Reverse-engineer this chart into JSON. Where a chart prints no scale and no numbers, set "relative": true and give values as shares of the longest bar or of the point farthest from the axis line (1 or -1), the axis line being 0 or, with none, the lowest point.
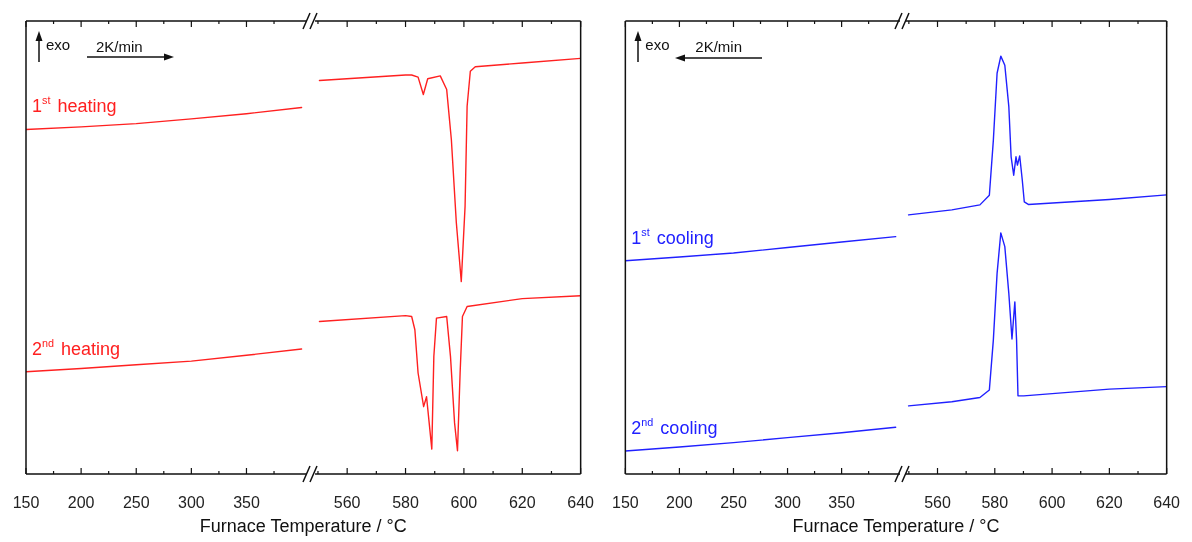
{
  "chart_data": [
    {
      "type": "line",
      "relative": true,
      "xlabel": "Furnace Temperature / °C",
      "annotations": [
        "exo",
        "2K/min"
      ],
      "xlim": [
        150,
        404
      ],
      "xticks": [
        150,
        {
          "value": 175,
          "label": null
        },
        200,
        {
          "value": 225,
          "label": null
        },
        250,
        {
          "value": 275,
          "label": null
        },
        300,
        {
          "value": 325,
          "label": null
        },
        350,
        {
          "value": 375,
          "label": null
        }
      ],
      "series": [
        {
          "name": "1$^{st}$ heating",
          "color": "#ff2020",
          "x": [
            150,
            200,
            250,
            300,
            350,
            400
          ],
          "values": [
            0.94,
            0.947,
            0.956,
            0.969,
            0.983,
            1.0
          ]
        },
        {
          "name": "2$^{nd}$ heating",
          "color": "#ff2020",
          "x": [
            150,
            200,
            250,
            300,
            350,
            400
          ],
          "values": [
            0.279,
            0.288,
            0.298,
            0.308,
            0.324,
            0.341
          ]
        }
      ]
    },
    {
      "type": "line",
      "relative": true,
      "xlim": [
        549,
        640
      ],
      "xticks": [
        {
          "value": 550,
          "label": null
        },
        560,
        {
          "value": 570,
          "label": null
        },
        580,
        {
          "value": 590,
          "label": null
        },
        600,
        {
          "value": 610,
          "label": null
        },
        620,
        {
          "value": 630,
          "label": null
        },
        640
      ],
      "series": [
        {
          "color": "#ff2020",
          "x": [
            550.5,
            580,
            582.1,
            584.3,
            586.1,
            587.6,
            591.9,
            594.1,
            595.7,
            597.4,
            599.1,
            600.4,
            601.1,
            602.2,
            603.9,
            620,
            640
          ],
          "values": [
            0.947,
            0.96,
            0.96,
            0.955,
            0.913,
            0.951,
            0.958,
            0.925,
            0.805,
            0.605,
            0.463,
            0.644,
            0.885,
            0.969,
            0.98,
            0.989,
            1.0
          ]
        },
        {
          "color": "#ff2020",
          "x": [
            550.5,
            580,
            582.1,
            583.2,
            584.3,
            586.2,
            587.2,
            588.1,
            589.0,
            589.7,
            590.6,
            594.1,
            595.4,
            596.8,
            597.8,
            598.7,
            599.5,
            601.1,
            620,
            640
          ],
          "values": [
            0.367,
            0.381,
            0.379,
            0.347,
            0.243,
            0.162,
            0.186,
            0.123,
            0.06,
            0.283,
            0.375,
            0.379,
            0.283,
            0.123,
            0.056,
            0.243,
            0.379,
            0.403,
            0.422,
            0.429
          ]
        }
      ]
    },
    {
      "type": "line",
      "relative": true,
      "xlabel": "Furnace Temperature / °C",
      "annotations": [
        "exo",
        "2K/min"
      ],
      "xlim": [
        150,
        404
      ],
      "xticks": [
        150,
        {
          "value": 175,
          "label": null
        },
        200,
        {
          "value": 225,
          "label": null
        },
        250,
        {
          "value": 275,
          "label": null
        },
        300,
        {
          "value": 325,
          "label": null
        },
        350,
        {
          "value": 375,
          "label": null
        }
      ],
      "series": [
        {
          "name": "1$^{st}$ cooling",
          "color": "#2020ff",
          "x": [
            150,
            200,
            250,
            300,
            350,
            400
          ],
          "values": [
            0.898,
            0.914,
            0.931,
            0.954,
            0.977,
            1.0
          ]
        },
        {
          "name": "2$^{nd}$ cooling",
          "color": "#2020ff",
          "x": [
            150,
            200,
            250,
            300,
            350,
            400
          ],
          "values": [
            0.097,
            0.114,
            0.132,
            0.153,
            0.174,
            0.197
          ]
        }
      ]
    },
    {
      "type": "line",
      "relative": true,
      "xlim": [
        549,
        640
      ],
      "xticks": [
        {
          "value": 550,
          "label": null
        },
        560,
        {
          "value": 570,
          "label": null
        },
        580,
        {
          "value": 590,
          "label": null
        },
        600,
        {
          "value": 610,
          "label": null
        },
        620,
        {
          "value": 630,
          "label": null
        },
        640
      ],
      "series": [
        {
          "color": "#2020ff",
          "x": [
            549.9,
            565.0,
            574.8,
            578.1,
            579.5,
            580.8,
            582.1,
            583.5,
            584.9,
            585.7,
            586.6,
            587.4,
            587.9,
            588.7,
            589.6,
            590.3,
            591.7,
            620,
            640
          ],
          "values": [
            0.62,
            0.632,
            0.644,
            0.667,
            0.799,
            0.959,
            1.0,
            0.978,
            0.879,
            0.759,
            0.715,
            0.759,
            0.739,
            0.761,
            0.703,
            0.651,
            0.645,
            0.657,
            0.668
          ]
        },
        {
          "color": "#2020ff",
          "x": [
            549.9,
            565.0,
            574.8,
            578.1,
            579.5,
            580.8,
            582.1,
            583.5,
            584.9,
            586.0,
            587.0,
            587.6,
            588.1,
            590.1,
            620,
            640
          ],
          "values": [
            0.163,
            0.173,
            0.183,
            0.201,
            0.321,
            0.48,
            0.577,
            0.544,
            0.432,
            0.323,
            0.412,
            0.321,
            0.187,
            0.187,
            0.203,
            0.209
          ]
        }
      ]
    }
  ]
}
